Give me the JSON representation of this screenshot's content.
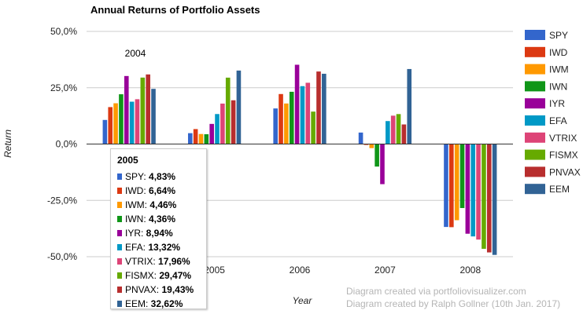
{
  "chart_data": {
    "type": "bar",
    "title": "Annual Returns of Portfolio Assets",
    "xlabel": "Year",
    "ylabel": "Return",
    "categories": [
      "2004",
      "2005",
      "2006",
      "2007",
      "2008"
    ],
    "ylim": [
      -50,
      50
    ],
    "yticks": [
      50,
      25,
      0,
      -25,
      -50
    ],
    "ytick_labels": [
      "50,0%",
      "25,0%",
      "0,0%",
      "-25,0%",
      "-50,0%"
    ],
    "grid": true,
    "legend_position": "right",
    "series": [
      {
        "name": "SPY",
        "color": "#3366cc",
        "values": [
          10.7,
          4.83,
          15.8,
          5.1,
          -36.8
        ]
      },
      {
        "name": "IWD",
        "color": "#dc3912",
        "values": [
          16.4,
          6.64,
          22.2,
          -0.4,
          -36.9
        ]
      },
      {
        "name": "IWM",
        "color": "#ff9900",
        "values": [
          18.1,
          4.46,
          18.0,
          -1.8,
          -33.8
        ]
      },
      {
        "name": "IWN",
        "color": "#109618",
        "values": [
          22.1,
          4.36,
          23.2,
          -10.0,
          -28.4
        ]
      },
      {
        "name": "IYR",
        "color": "#990099",
        "values": [
          30.2,
          8.94,
          35.2,
          -17.8,
          -39.8
        ]
      },
      {
        "name": "EFA",
        "color": "#0099c6",
        "values": [
          18.8,
          13.32,
          25.7,
          10.2,
          -41.0
        ]
      },
      {
        "name": "VTRIX",
        "color": "#dd4477",
        "values": [
          19.9,
          17.96,
          27.2,
          12.6,
          -42.4
        ]
      },
      {
        "name": "FISMX",
        "color": "#66aa00",
        "values": [
          29.5,
          29.47,
          14.4,
          13.3,
          -46.5
        ]
      },
      {
        "name": "PNVAX",
        "color": "#b82e2e",
        "values": [
          30.9,
          19.43,
          32.2,
          8.7,
          -48.1
        ]
      },
      {
        "name": "EEM",
        "color": "#316395",
        "values": [
          24.5,
          32.62,
          31.2,
          33.3,
          -49.2
        ]
      }
    ],
    "annotations": [
      "2004"
    ],
    "tooltip": {
      "title": "2005",
      "rows": [
        {
          "label": "SPY:",
          "value": "4,83%"
        },
        {
          "label": "IWD:",
          "value": "6,64%"
        },
        {
          "label": "IWM:",
          "value": "4,46%"
        },
        {
          "label": "IWN:",
          "value": "4,36%"
        },
        {
          "label": "IYR:",
          "value": "8,94%"
        },
        {
          "label": "EFA:",
          "value": "13,32%"
        },
        {
          "label": "VTRIX:",
          "value": "17,96%"
        },
        {
          "label": "FISMX:",
          "value": "29,47%"
        },
        {
          "label": "PNVAX:",
          "value": "19,43%"
        },
        {
          "label": "EEM:",
          "value": "32,62%"
        }
      ]
    }
  },
  "credits": [
    "Diagram created via portfoliovisualizer.com",
    "Diagram created by Ralph Gollner (10th Jan. 2017)"
  ]
}
